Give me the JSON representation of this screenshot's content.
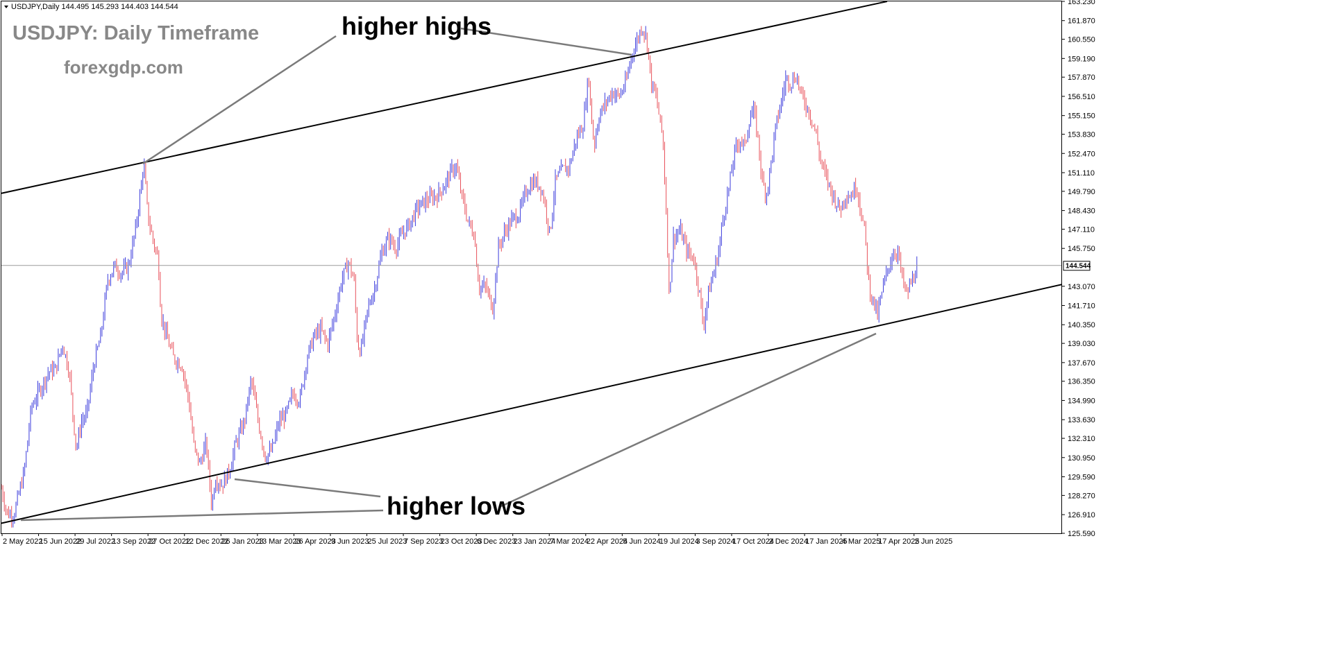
{
  "chart_data": {
    "type": "candlestick",
    "symbol_info": {
      "symbol": "USDJPY",
      "timeframe": "Daily",
      "open": "144.495",
      "high": "145.293",
      "low": "144.403",
      "close": "144.544"
    },
    "watermark_title": "USDJPY: Daily Timeframe",
    "watermark_site": "forexgdp.com",
    "current_price": "144.544",
    "ylim": [
      125.59,
      163.23
    ],
    "y_ticks": [
      "163.230",
      "161.870",
      "160.550",
      "159.190",
      "157.870",
      "156.510",
      "155.150",
      "153.830",
      "152.470",
      "151.110",
      "149.790",
      "148.430",
      "147.110",
      "145.750",
      "143.070",
      "141.710",
      "140.350",
      "139.030",
      "137.670",
      "136.350",
      "134.990",
      "133.630",
      "132.310",
      "130.950",
      "129.590",
      "128.270",
      "126.910",
      "125.590"
    ],
    "x_ticks": [
      "2 May 2022",
      "15 Jun 2022",
      "29 Jul 2022",
      "13 Sep 2022",
      "27 Oct 2022",
      "12 Dec 2022",
      "26 Jan 2023",
      "13 Mar 2023",
      "26 Apr 2023",
      "9 Jun 2023",
      "25 Jul 2023",
      "7 Sep 2023",
      "23 Oct 2023",
      "6 Dec 2023",
      "23 Jan 2024",
      "7 Mar 2024",
      "22 Apr 2024",
      "5 Jun 2024",
      "19 Jul 2024",
      "3 Sep 2024",
      "17 Oct 2024",
      "2 Dec 2024",
      "17 Jan 2025",
      "4 Mar 2025",
      "17 Apr 2025",
      "2 Jun 2025"
    ],
    "price_path": [
      [
        0,
        129.2
      ],
      [
        10,
        127.0
      ],
      [
        20,
        126.9
      ],
      [
        35,
        130.0
      ],
      [
        45,
        134.5
      ],
      [
        60,
        136.0
      ],
      [
        70,
        137.0
      ],
      [
        80,
        137.2
      ],
      [
        90,
        139.0
      ],
      [
        95,
        138.0
      ],
      [
        100,
        137.0
      ],
      [
        105,
        134.0
      ],
      [
        110,
        131.5
      ],
      [
        117,
        133.5
      ],
      [
        125,
        134.0
      ],
      [
        135,
        137.5
      ],
      [
        145,
        139.5
      ],
      [
        155,
        143.5
      ],
      [
        165,
        144.5
      ],
      [
        175,
        144.0
      ],
      [
        185,
        144.5
      ],
      [
        195,
        147.0
      ],
      [
        203,
        150.0
      ],
      [
        207,
        151.9
      ],
      [
        213,
        148.0
      ],
      [
        222,
        146.0
      ],
      [
        228,
        145.0
      ],
      [
        232,
        141.0
      ],
      [
        240,
        139.5
      ],
      [
        250,
        138.0
      ],
      [
        262,
        137.5
      ],
      [
        272,
        135.0
      ],
      [
        280,
        131.5
      ],
      [
        288,
        130.5
      ],
      [
        297,
        132.0
      ],
      [
        305,
        127.5
      ],
      [
        310,
        129.5
      ],
      [
        320,
        129.0
      ],
      [
        330,
        130.0
      ],
      [
        340,
        132.0
      ],
      [
        352,
        133.5
      ],
      [
        362,
        136.5
      ],
      [
        372,
        133.5
      ],
      [
        382,
        131.0
      ],
      [
        392,
        131.5
      ],
      [
        402,
        133.5
      ],
      [
        412,
        134.0
      ],
      [
        422,
        135.5
      ],
      [
        432,
        135.0
      ],
      [
        442,
        138.0
      ],
      [
        452,
        139.5
      ],
      [
        462,
        140.0
      ],
      [
        472,
        139.0
      ],
      [
        482,
        141.0
      ],
      [
        492,
        143.5
      ],
      [
        502,
        144.8
      ],
      [
        510,
        143.5
      ],
      [
        515,
        139.0
      ],
      [
        520,
        138.5
      ],
      [
        530,
        141.5
      ],
      [
        540,
        143.0
      ],
      [
        550,
        145.5
      ],
      [
        560,
        146.5
      ],
      [
        570,
        145.8
      ],
      [
        580,
        146.8
      ],
      [
        590,
        147.5
      ],
      [
        600,
        148.5
      ],
      [
        610,
        149.0
      ],
      [
        620,
        149.3
      ],
      [
        630,
        149.5
      ],
      [
        640,
        150.2
      ],
      [
        650,
        151.2
      ],
      [
        657,
        151.6
      ],
      [
        665,
        149.5
      ],
      [
        675,
        147.5
      ],
      [
        683,
        146.8
      ],
      [
        690,
        143.0
      ],
      [
        700,
        143.0
      ],
      [
        710,
        141.5
      ],
      [
        718,
        145.8
      ],
      [
        728,
        147.0
      ],
      [
        738,
        147.8
      ],
      [
        748,
        148.2
      ],
      [
        758,
        149.8
      ],
      [
        768,
        150.5
      ],
      [
        778,
        150.2
      ],
      [
        785,
        149.0
      ],
      [
        792,
        146.7
      ],
      [
        800,
        150.5
      ],
      [
        810,
        151.3
      ],
      [
        820,
        151.5
      ],
      [
        830,
        153.5
      ],
      [
        840,
        154.5
      ],
      [
        848,
        158.0
      ],
      [
        852,
        155.0
      ],
      [
        856,
        153.0
      ],
      [
        862,
        155.0
      ],
      [
        872,
        156.0
      ],
      [
        882,
        156.8
      ],
      [
        892,
        156.5
      ],
      [
        902,
        157.5
      ],
      [
        910,
        159.5
      ],
      [
        918,
        160.5
      ],
      [
        925,
        161.5
      ],
      [
        932,
        160.5
      ],
      [
        938,
        157.5
      ],
      [
        945,
        156.5
      ],
      [
        950,
        155.0
      ],
      [
        955,
        153.5
      ],
      [
        960,
        148.0
      ],
      [
        964,
        142.5
      ],
      [
        970,
        146.5
      ],
      [
        980,
        147.0
      ],
      [
        990,
        145.5
      ],
      [
        1000,
        145.0
      ],
      [
        1008,
        142.5
      ],
      [
        1013,
        140.2
      ],
      [
        1020,
        142.5
      ],
      [
        1028,
        144.0
      ],
      [
        1035,
        145.5
      ],
      [
        1042,
        148.0
      ],
      [
        1050,
        150.0
      ],
      [
        1058,
        152.5
      ],
      [
        1066,
        153.5
      ],
      [
        1073,
        153.0
      ],
      [
        1080,
        155.0
      ],
      [
        1086,
        155.5
      ],
      [
        1092,
        153.5
      ],
      [
        1098,
        150.5
      ],
      [
        1104,
        149.5
      ],
      [
        1110,
        151.5
      ],
      [
        1118,
        154.5
      ],
      [
        1125,
        156.0
      ],
      [
        1132,
        157.8
      ],
      [
        1140,
        157.5
      ],
      [
        1147,
        158.0
      ],
      [
        1155,
        156.5
      ],
      [
        1165,
        155.5
      ],
      [
        1175,
        154.0
      ],
      [
        1182,
        152.0
      ],
      [
        1190,
        150.8
      ],
      [
        1200,
        149.5
      ],
      [
        1210,
        148.5
      ],
      [
        1218,
        149.5
      ],
      [
        1226,
        149.5
      ],
      [
        1234,
        150.2
      ],
      [
        1240,
        148.5
      ],
      [
        1246,
        146.8
      ],
      [
        1252,
        143.0
      ],
      [
        1258,
        142.0
      ],
      [
        1264,
        141.0
      ],
      [
        1272,
        143.0
      ],
      [
        1280,
        144.5
      ],
      [
        1288,
        145.5
      ],
      [
        1294,
        145.5
      ],
      [
        1300,
        143.5
      ],
      [
        1306,
        142.5
      ],
      [
        1314,
        143.5
      ],
      [
        1322,
        144.5
      ]
    ],
    "trendlines": [
      {
        "name": "upper-channel",
        "points": [
          [
            2,
            149.65
          ],
          [
            1278,
            163.23
          ]
        ]
      },
      {
        "name": "lower-channel",
        "points": [
          [
            2,
            126.3
          ],
          [
            1530,
            143.2
          ]
        ]
      }
    ],
    "annotations": [
      {
        "label": "higher highs",
        "connectors": [
          [
            [
              484,
              52
            ],
            [
              206,
              236
            ]
          ],
          [
            [
              664,
              41
            ],
            [
              910,
              79
            ]
          ]
        ]
      },
      {
        "label": "higher lows",
        "connectors": [
          [
            [
              548,
              716
            ],
            [
              338,
              691
            ]
          ],
          [
            [
              552,
              736
            ],
            [
              30,
              750
            ]
          ],
          [
            [
              722,
              730
            ],
            [
              1262,
              481
            ]
          ]
        ]
      }
    ]
  }
}
